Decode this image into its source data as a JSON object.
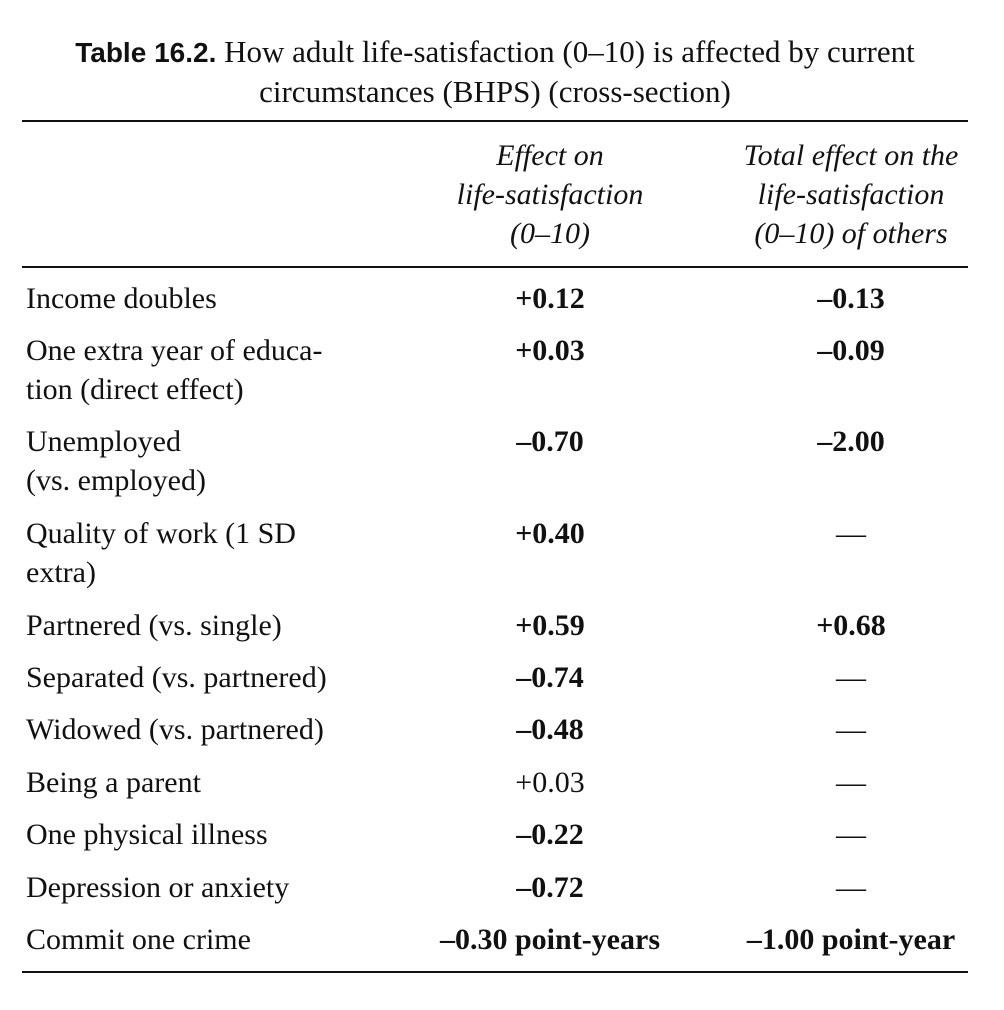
{
  "caption": {
    "label": "Table 16.2.",
    "text": "How adult life-satisfaction (0–10) is affected by current circumstances (BHPS) (cross-section)"
  },
  "columns": {
    "col1": "Effect on\nlife-satisfaction\n(0–10)",
    "col2": "Total effect on the\nlife-satisfaction\n(0–10) of others"
  },
  "rows": [
    {
      "label": "Income doubles",
      "effect": "+0.12",
      "others": "–0.13"
    },
    {
      "label": "One extra year of educa-\ntion (direct effect)",
      "effect": "+0.03",
      "others": "–0.09"
    },
    {
      "label": "Unemployed\n(vs. employed)",
      "effect": "–0.70",
      "others": "–2.00"
    },
    {
      "label": "Quality of work (1 SD\nextra)",
      "effect": "+0.40",
      "others": "—"
    },
    {
      "label": "Partnered (vs. single)",
      "effect": "+0.59",
      "others": "+0.68"
    },
    {
      "label": "Separated (vs. partnered)",
      "effect": "–0.74",
      "others": "—"
    },
    {
      "label": "Widowed (vs. partnered)",
      "effect": "–0.48",
      "others": "—"
    },
    {
      "label": "Being a parent",
      "effect": "+0.03",
      "others": "—"
    },
    {
      "label": "One physical illness",
      "effect": "–0.22",
      "others": "—"
    },
    {
      "label": "Depression or anxiety",
      "effect": "–0.72",
      "others": "—"
    },
    {
      "label": "Commit one crime",
      "effect": "–0.30 point-years",
      "others": "–1.00 point-year"
    }
  ]
}
